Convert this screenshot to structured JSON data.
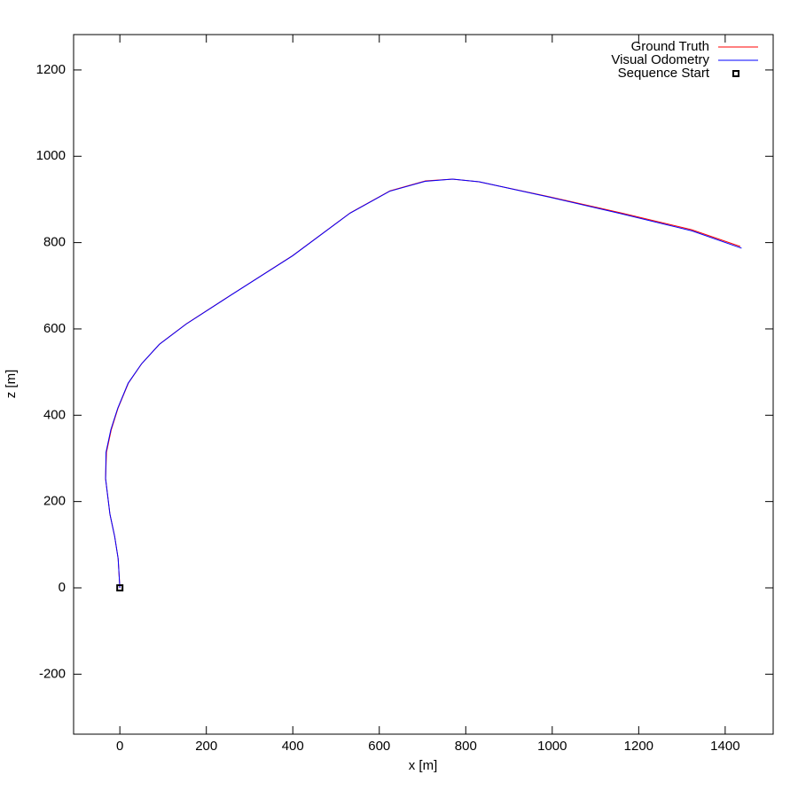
{
  "chart_data": {
    "type": "line",
    "xlabel": "x [m]",
    "ylabel": "z [m]",
    "xlim": [
      -107,
      1511
    ],
    "ylim": [
      -339,
      1282
    ],
    "xticks": [
      0,
      200,
      400,
      600,
      800,
      1000,
      1200,
      1400
    ],
    "yticks": [
      -200,
      0,
      200,
      400,
      600,
      800,
      1000,
      1200
    ],
    "legend": "top right",
    "series": [
      {
        "name": "Ground Truth",
        "color": "#ff0000",
        "x": [
          0,
          -4,
          -12,
          -23,
          -33,
          -31,
          -20,
          -4,
          20,
          51,
          92,
          154,
          256,
          400,
          533,
          625,
          707,
          769,
          830,
          994,
          1158,
          1322,
          1435
        ],
        "values": [
          0,
          68,
          119,
          171,
          253,
          314,
          366,
          417,
          475,
          520,
          565,
          612,
          678,
          770,
          869,
          920,
          943,
          947,
          941,
          906,
          869,
          830,
          791
        ]
      },
      {
        "name": "Visual Odometry",
        "color": "#0000ff",
        "x": [
          0,
          -4,
          -12,
          -23,
          -33,
          -32,
          -21,
          -5,
          19,
          50,
          91,
          153,
          255,
          399,
          532,
          624,
          706,
          769,
          831,
          995,
          1159,
          1324,
          1438
        ],
        "values": [
          0,
          68,
          119,
          171,
          253,
          314,
          366,
          416,
          474,
          519,
          564,
          611,
          677,
          769,
          868,
          919,
          942,
          947,
          941,
          905,
          867,
          827,
          787
        ]
      },
      {
        "name": "Sequence Start",
        "color": "#000000",
        "marker": "square",
        "x": [
          0
        ],
        "values": [
          0
        ]
      }
    ]
  }
}
